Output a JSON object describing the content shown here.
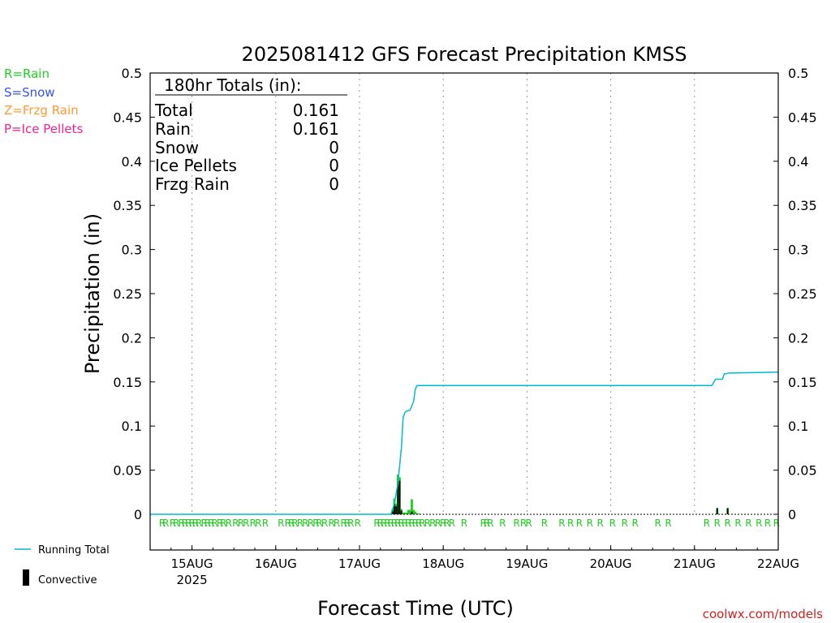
{
  "title": "2025081412 GFS Forecast Precipitation KMSS",
  "ylabel": "Precipitation (in)",
  "xlabel": "Forecast Time (UTC)",
  "credit": "coolwx.com/models",
  "ptype_legend": [
    {
      "text": "R=Rain",
      "color": "#22cc22"
    },
    {
      "text": "S=Snow",
      "color": "#3355ee"
    },
    {
      "text": "Z=Frzg Rain",
      "color": "#ff9933"
    },
    {
      "text": "P=Ice Pellets",
      "color": "#ee2299"
    }
  ],
  "totals": {
    "header": "180hr Totals (in):",
    "rows": [
      {
        "label": "Total",
        "value": "0.161"
      },
      {
        "label": "Rain",
        "value": "0.161"
      },
      {
        "label": "Snow",
        "value": "0"
      },
      {
        "label": "Ice Pellets",
        "value": "0"
      },
      {
        "label": "Frzg Rain",
        "value": "0"
      }
    ]
  },
  "series_legend": {
    "running_total": "Running Total",
    "convective": "Convective",
    "running_total_color": "#00bbcc",
    "convective_color": "#000000"
  },
  "chart_data": {
    "type": "line",
    "x_unit": "hours since 2025-08-14 12 UTC",
    "xlim": [
      0,
      180
    ],
    "ylim": [
      0,
      0.5
    ],
    "yticks": [
      "0",
      "0.05",
      "0.1",
      "0.15",
      "0.2",
      "0.25",
      "0.3",
      "0.35",
      "0.4",
      "0.45",
      "0.5"
    ],
    "xticks": [
      {
        "x": 12,
        "label": "15AUG",
        "sub": "2025"
      },
      {
        "x": 36,
        "label": "16AUG",
        "sub": ""
      },
      {
        "x": 60,
        "label": "17AUG",
        "sub": ""
      },
      {
        "x": 84,
        "label": "18AUG",
        "sub": ""
      },
      {
        "x": 108,
        "label": "19AUG",
        "sub": ""
      },
      {
        "x": 132,
        "label": "20AUG",
        "sub": ""
      },
      {
        "x": 156,
        "label": "21AUG",
        "sub": ""
      },
      {
        "x": 180,
        "label": "22AUG",
        "sub": ""
      }
    ],
    "grid": "vertical-dotted",
    "running_total": [
      [
        0,
        0
      ],
      [
        69,
        0
      ],
      [
        70,
        0.012
      ],
      [
        71,
        0.035
      ],
      [
        72,
        0.075
      ],
      [
        72.5,
        0.11
      ],
      [
        73,
        0.115
      ],
      [
        73.5,
        0.117
      ],
      [
        74.5,
        0.118
      ],
      [
        75.5,
        0.128
      ],
      [
        76,
        0.142
      ],
      [
        76.5,
        0.146
      ],
      [
        84,
        0.146
      ],
      [
        108,
        0.146
      ],
      [
        132,
        0.146
      ],
      [
        150,
        0.146
      ],
      [
        161,
        0.146
      ],
      [
        162,
        0.153
      ],
      [
        164,
        0.153
      ],
      [
        164.5,
        0.159
      ],
      [
        166,
        0.16
      ],
      [
        180,
        0.161
      ]
    ],
    "rain_bars": [
      [
        69.5,
        0.006
      ],
      [
        70.0,
        0.018
      ],
      [
        70.5,
        0.012
      ],
      [
        71.0,
        0.045
      ],
      [
        71.5,
        0.042
      ],
      [
        72.0,
        0.006
      ],
      [
        72.5,
        0.002
      ],
      [
        73.0,
        0.002
      ],
      [
        73.5,
        0.002
      ],
      [
        74.0,
        0.005
      ],
      [
        74.5,
        0.005
      ],
      [
        75.0,
        0.017
      ],
      [
        75.5,
        0.005
      ],
      [
        76.0,
        0.003
      ],
      [
        76.5,
        0.001
      ],
      [
        77.0,
        0.001
      ],
      [
        162.5,
        0.007
      ],
      [
        165.5,
        0.007
      ]
    ],
    "convective_bars": [
      [
        69.5,
        0.004
      ],
      [
        70.0,
        0.012
      ],
      [
        70.5,
        0.009
      ],
      [
        71.0,
        0.036
      ],
      [
        71.5,
        0.038
      ],
      [
        72.0,
        0.004
      ],
      [
        75.0,
        0.003
      ],
      [
        162.5,
        0.007
      ],
      [
        165.5,
        0.007
      ]
    ],
    "ptype_marks": [
      {
        "x": 3.5,
        "t": "R"
      },
      {
        "x": 4.5,
        "t": "R"
      },
      {
        "x": 6.5,
        "t": "R"
      },
      {
        "x": 7.5,
        "t": "R"
      },
      {
        "x": 9.0,
        "t": "R"
      },
      {
        "x": 10.0,
        "t": "R"
      },
      {
        "x": 11.0,
        "t": "R"
      },
      {
        "x": 12.0,
        "t": "R"
      },
      {
        "x": 13.0,
        "t": "R"
      },
      {
        "x": 14.0,
        "t": "R"
      },
      {
        "x": 15.5,
        "t": "R"
      },
      {
        "x": 16.5,
        "t": "R"
      },
      {
        "x": 17.5,
        "t": "R"
      },
      {
        "x": 18.5,
        "t": "R"
      },
      {
        "x": 20.0,
        "t": "R"
      },
      {
        "x": 21.0,
        "t": "R"
      },
      {
        "x": 22.5,
        "t": "R"
      },
      {
        "x": 24.5,
        "t": "R"
      },
      {
        "x": 26.0,
        "t": "R"
      },
      {
        "x": 27.5,
        "t": "R"
      },
      {
        "x": 29.5,
        "t": "R"
      },
      {
        "x": 31.0,
        "t": "R"
      },
      {
        "x": 33.0,
        "t": "R"
      },
      {
        "x": 37.5,
        "t": "R"
      },
      {
        "x": 39.5,
        "t": "R"
      },
      {
        "x": 40.5,
        "t": "R"
      },
      {
        "x": 41.5,
        "t": "R"
      },
      {
        "x": 43.0,
        "t": "R"
      },
      {
        "x": 44.5,
        "t": "R"
      },
      {
        "x": 46.0,
        "t": "R"
      },
      {
        "x": 47.5,
        "t": "R"
      },
      {
        "x": 48.5,
        "t": "R"
      },
      {
        "x": 50.0,
        "t": "R"
      },
      {
        "x": 52.0,
        "t": "R"
      },
      {
        "x": 53.5,
        "t": "R"
      },
      {
        "x": 55.5,
        "t": "R"
      },
      {
        "x": 56.5,
        "t": "R"
      },
      {
        "x": 57.5,
        "t": "R"
      },
      {
        "x": 59.5,
        "t": "R"
      },
      {
        "x": 65.0,
        "t": "R"
      },
      {
        "x": 66.0,
        "t": "R"
      },
      {
        "x": 67.0,
        "t": "R"
      },
      {
        "x": 68.0,
        "t": "R"
      },
      {
        "x": 69.0,
        "t": "R"
      },
      {
        "x": 70.0,
        "t": "R"
      },
      {
        "x": 71.0,
        "t": "R"
      },
      {
        "x": 72.0,
        "t": "R"
      },
      {
        "x": 73.0,
        "t": "R"
      },
      {
        "x": 74.0,
        "t": "R"
      },
      {
        "x": 75.0,
        "t": "R"
      },
      {
        "x": 76.0,
        "t": "R"
      },
      {
        "x": 77.0,
        "t": "R"
      },
      {
        "x": 78.0,
        "t": "R"
      },
      {
        "x": 79.5,
        "t": "R"
      },
      {
        "x": 81.0,
        "t": "R"
      },
      {
        "x": 82.5,
        "t": "R"
      },
      {
        "x": 84.0,
        "t": "R"
      },
      {
        "x": 85.0,
        "t": "R"
      },
      {
        "x": 86.5,
        "t": "R"
      },
      {
        "x": 90.0,
        "t": "R"
      },
      {
        "x": 95.5,
        "t": "R"
      },
      {
        "x": 96.5,
        "t": "R"
      },
      {
        "x": 97.5,
        "t": "R"
      },
      {
        "x": 101.0,
        "t": "R"
      },
      {
        "x": 105.0,
        "t": "R"
      },
      {
        "x": 107.0,
        "t": "R"
      },
      {
        "x": 108.5,
        "t": "R"
      },
      {
        "x": 113.0,
        "t": "R"
      },
      {
        "x": 118.0,
        "t": "R"
      },
      {
        "x": 120.5,
        "t": "R"
      },
      {
        "x": 123.0,
        "t": "R"
      },
      {
        "x": 126.0,
        "t": "R"
      },
      {
        "x": 129.0,
        "t": "R"
      },
      {
        "x": 132.5,
        "t": "R"
      },
      {
        "x": 136.0,
        "t": "R"
      },
      {
        "x": 139.0,
        "t": "R"
      },
      {
        "x": 145.5,
        "t": "R"
      },
      {
        "x": 148.5,
        "t": "R"
      },
      {
        "x": 159.5,
        "t": "R"
      },
      {
        "x": 162.5,
        "t": "R"
      },
      {
        "x": 165.5,
        "t": "R"
      },
      {
        "x": 168.5,
        "t": "R"
      },
      {
        "x": 171.5,
        "t": "R"
      },
      {
        "x": 174.5,
        "t": "R"
      },
      {
        "x": 177.0,
        "t": "R"
      },
      {
        "x": 179.5,
        "t": "R"
      }
    ]
  }
}
